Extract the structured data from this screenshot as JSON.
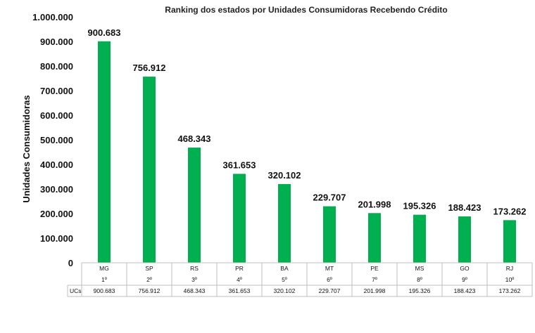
{
  "chart_data": {
    "type": "bar",
    "title": "Ranking dos estados por Unidades Consumidoras Recebendo Crédito",
    "ylabel": "Unidades Consumidoras",
    "ylim": [
      0,
      1000000
    ],
    "yticks": [
      "0",
      "100.000",
      "200.000",
      "300.000",
      "400.000",
      "500.000",
      "600.000",
      "700.000",
      "800.000",
      "900.000",
      "1.000.000"
    ],
    "grid": false,
    "bar_color": "#00b050",
    "categories": [
      "MG",
      "SP",
      "RS",
      "PR",
      "BA",
      "MT",
      "PE",
      "MS",
      "GO",
      "RJ"
    ],
    "ranks": [
      "1º",
      "2º",
      "3º",
      "4º",
      "5º",
      "6º",
      "7º",
      "8º",
      "9º",
      "10º"
    ],
    "values": [
      900683,
      756912,
      468343,
      361653,
      320102,
      229707,
      201998,
      195326,
      188423,
      173262
    ],
    "value_labels": [
      "900.683",
      "756.912",
      "468.343",
      "361.653",
      "320.102",
      "229.707",
      "201.998",
      "195.326",
      "188.423",
      "173.262"
    ],
    "table_row_label": "UCs"
  }
}
